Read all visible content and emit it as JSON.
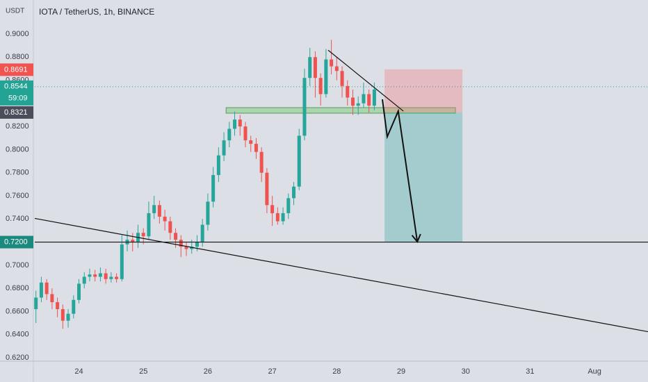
{
  "chart_data": {
    "type": "candlestick",
    "title": "IOTA / TetherUS, 1h, BINANCE",
    "currency": "USDT",
    "up_color": "#26a69a",
    "down_color": "#ef5350",
    "x": [
      -16,
      -14,
      -12,
      -10,
      -8,
      -6,
      -4,
      -2,
      0,
      2,
      4,
      6,
      8,
      10,
      12,
      14,
      16,
      18,
      20,
      22,
      24,
      26,
      28,
      30,
      32,
      34,
      36,
      38,
      40,
      42,
      44,
      46,
      48,
      50,
      52,
      54,
      56,
      58,
      60,
      62,
      64,
      66,
      68,
      70,
      72,
      74,
      76,
      78,
      80,
      82,
      84,
      86,
      88,
      90,
      92,
      94,
      96,
      98,
      100,
      102,
      104,
      106,
      108,
      110
    ],
    "open": [
      0.662,
      0.672,
      0.685,
      0.675,
      0.668,
      0.662,
      0.652,
      0.658,
      0.67,
      0.684,
      0.69,
      0.692,
      0.69,
      0.693,
      0.688,
      0.69,
      0.688,
      0.718,
      0.722,
      0.72,
      0.728,
      0.725,
      0.745,
      0.752,
      0.742,
      0.738,
      0.728,
      0.722,
      0.716,
      0.714,
      0.716,
      0.72,
      0.735,
      0.755,
      0.778,
      0.795,
      0.808,
      0.818,
      0.826,
      0.82,
      0.808,
      0.805,
      0.798,
      0.78,
      0.752,
      0.745,
      0.738,
      0.745,
      0.758,
      0.768,
      0.812,
      0.862,
      0.88,
      0.862,
      0.848,
      0.878,
      0.872,
      0.868,
      0.855,
      0.845,
      0.838,
      0.84,
      0.848,
      0.838
    ],
    "high": [
      0.678,
      0.69,
      0.688,
      0.68,
      0.672,
      0.666,
      0.662,
      0.674,
      0.688,
      0.694,
      0.697,
      0.696,
      0.698,
      0.697,
      0.694,
      0.693,
      0.726,
      0.73,
      0.728,
      0.735,
      0.732,
      0.755,
      0.76,
      0.756,
      0.748,
      0.742,
      0.732,
      0.726,
      0.72,
      0.722,
      0.726,
      0.74,
      0.762,
      0.785,
      0.802,
      0.815,
      0.824,
      0.833,
      0.83,
      0.824,
      0.812,
      0.81,
      0.802,
      0.784,
      0.76,
      0.75,
      0.75,
      0.762,
      0.772,
      0.818,
      0.87,
      0.888,
      0.885,
      0.866,
      0.887,
      0.895,
      0.88,
      0.872,
      0.86,
      0.852,
      0.846,
      0.858,
      0.852,
      0.858
    ],
    "low": [
      0.65,
      0.668,
      0.67,
      0.662,
      0.655,
      0.645,
      0.646,
      0.654,
      0.667,
      0.68,
      0.686,
      0.686,
      0.686,
      0.684,
      0.685,
      0.685,
      0.686,
      0.712,
      0.712,
      0.715,
      0.718,
      0.722,
      0.74,
      0.736,
      0.73,
      0.722,
      0.715,
      0.707,
      0.708,
      0.71,
      0.712,
      0.716,
      0.73,
      0.75,
      0.772,
      0.79,
      0.802,
      0.812,
      0.812,
      0.802,
      0.798,
      0.792,
      0.772,
      0.745,
      0.734,
      0.735,
      0.735,
      0.74,
      0.752,
      0.765,
      0.808,
      0.855,
      0.845,
      0.838,
      0.845,
      0.865,
      0.86,
      0.845,
      0.838,
      0.83,
      0.83,
      0.836,
      0.832,
      0.834
    ],
    "close": [
      0.672,
      0.685,
      0.675,
      0.668,
      0.662,
      0.652,
      0.658,
      0.67,
      0.684,
      0.69,
      0.692,
      0.69,
      0.693,
      0.688,
      0.69,
      0.688,
      0.718,
      0.722,
      0.72,
      0.728,
      0.725,
      0.745,
      0.752,
      0.742,
      0.738,
      0.728,
      0.722,
      0.716,
      0.714,
      0.716,
      0.72,
      0.735,
      0.755,
      0.778,
      0.795,
      0.808,
      0.818,
      0.826,
      0.82,
      0.808,
      0.805,
      0.798,
      0.78,
      0.752,
      0.745,
      0.738,
      0.745,
      0.758,
      0.768,
      0.812,
      0.862,
      0.88,
      0.862,
      0.848,
      0.878,
      0.872,
      0.868,
      0.855,
      0.845,
      0.838,
      0.84,
      0.848,
      0.838,
      0.852
    ],
    "xlim": [
      -16.44,
      211.9
    ],
    "ylim": [
      0.617,
      0.9294
    ],
    "xticks": [
      {
        "value": 0,
        "label": "24"
      },
      {
        "value": 24,
        "label": "25"
      },
      {
        "value": 48,
        "label": "26"
      },
      {
        "value": 72,
        "label": "27"
      },
      {
        "value": 96,
        "label": "28"
      },
      {
        "value": 120,
        "label": "29"
      },
      {
        "value": 144,
        "label": "30"
      },
      {
        "value": 168,
        "label": "31"
      },
      {
        "value": 192,
        "label": "Aug"
      }
    ],
    "yticks": [
      {
        "value": 0.9,
        "label": "0.9000"
      },
      {
        "value": 0.88,
        "label": "0.8800"
      },
      {
        "value": 0.86,
        "label": "0.8600"
      },
      {
        "value": 0.82,
        "label": "0.8200"
      },
      {
        "value": 0.8,
        "label": "0.8000"
      },
      {
        "value": 0.78,
        "label": "0.7800"
      },
      {
        "value": 0.76,
        "label": "0.7600"
      },
      {
        "value": 0.74,
        "label": "0.7400"
      },
      {
        "value": 0.7,
        "label": "0.7000"
      },
      {
        "value": 0.68,
        "label": "0.6800"
      },
      {
        "value": 0.66,
        "label": "0.6600"
      },
      {
        "value": 0.64,
        "label": "0.6400"
      },
      {
        "value": 0.62,
        "label": "0.6200"
      }
    ],
    "price_labels": [
      {
        "value": 0.8691,
        "label": "0.8691",
        "color": "#f05350"
      },
      {
        "value": 0.8544,
        "label": "0.8544",
        "countdown": "59:09",
        "color": "#22a394"
      },
      {
        "value": 0.8321,
        "label": "0.8321",
        "color": "#4a4e5a"
      },
      {
        "value": 0.72,
        "label": "0.7200",
        "color": "#1b8a7e"
      }
    ],
    "current_price": 0.8544,
    "hline": 0.72,
    "lines": [
      {
        "x": [
          -16.44,
          211.9
        ],
        "y": [
          0.7405,
          0.6425
        ]
      },
      {
        "x": [
          92.8,
          120.8
        ],
        "y": [
          0.886,
          0.8333
        ]
      }
    ],
    "zones": [
      {
        "x": [
          54.8,
          140.2
        ],
        "y": [
          0.8315,
          0.8363
        ],
        "color": "rgba(110,200,110,0.45)",
        "stroke": "#5a9a5a"
      },
      {
        "x": [
          113.8,
          142.8
        ],
        "y": [
          0.8321,
          0.8694
        ],
        "color": "rgba(240,120,120,0.35)",
        "stroke": "none"
      },
      {
        "x": [
          113.8,
          142.8
        ],
        "y": [
          0.72,
          0.8321
        ],
        "color": "rgba(60,170,160,0.35)",
        "stroke": "none"
      }
    ],
    "arrow": {
      "x": [
        113.0,
        114.8,
        118.9,
        126.0
      ],
      "y": [
        0.8435,
        0.8111,
        0.8333,
        0.7203
      ]
    }
  }
}
